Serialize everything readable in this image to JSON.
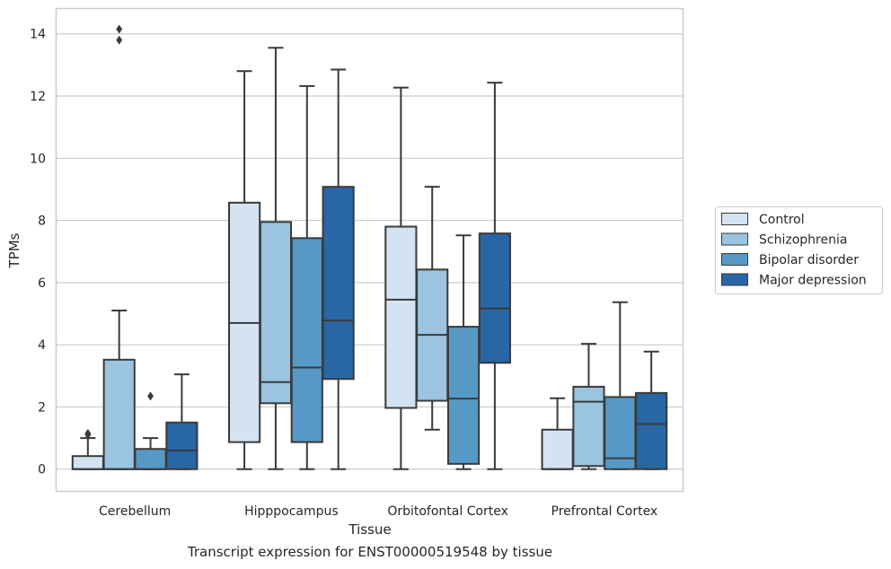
{
  "chart_data": {
    "type": "box",
    "title": "",
    "xlabel": "Tissue",
    "ylabel": "TPMs",
    "ylim": [
      -0.7,
      14.8
    ],
    "yticks": [
      0,
      2,
      4,
      6,
      8,
      10,
      12,
      14
    ],
    "grid": "horizontal",
    "legend_position": "right",
    "categories": [
      "Cerebellum",
      "Hipppocampus",
      "Orbitofontal Cortex",
      "Prefrontal Cortex"
    ],
    "series": [
      {
        "name": "Control",
        "color": "#d3e3f2",
        "boxes": [
          {
            "min": 0,
            "q1": 0,
            "median": 0,
            "q3": 0.42,
            "max": 1.0,
            "outliers": [
              1.1,
              1.15
            ]
          },
          {
            "min": 0,
            "q1": 0.87,
            "median": 4.7,
            "q3": 8.57,
            "max": 12.8,
            "outliers": []
          },
          {
            "min": 0,
            "q1": 1.97,
            "median": 5.45,
            "q3": 7.8,
            "max": 12.27,
            "outliers": []
          },
          {
            "min": 0,
            "q1": 0,
            "median": 0,
            "q3": 1.27,
            "max": 2.28,
            "outliers": []
          }
        ]
      },
      {
        "name": "Schizophrenia",
        "color": "#9ac4df",
        "boxes": [
          {
            "min": 0,
            "q1": 0,
            "median": 0,
            "q3": 3.52,
            "max": 5.1,
            "outliers": [
              13.8,
              14.15
            ]
          },
          {
            "min": 0,
            "q1": 2.12,
            "median": 2.8,
            "q3": 7.95,
            "max": 13.55,
            "outliers": []
          },
          {
            "min": 1.27,
            "q1": 2.2,
            "median": 4.32,
            "q3": 6.42,
            "max": 9.08,
            "outliers": []
          },
          {
            "min": 0,
            "q1": 0.1,
            "median": 2.17,
            "q3": 2.65,
            "max": 4.03,
            "outliers": []
          }
        ]
      },
      {
        "name": "Bipolar disorder",
        "color": "#5699c6",
        "boxes": [
          {
            "min": 0,
            "q1": 0,
            "median": 0,
            "q3": 0.65,
            "max": 1.0,
            "outliers": [
              2.35
            ]
          },
          {
            "min": 0,
            "q1": 0.87,
            "median": 3.27,
            "q3": 7.43,
            "max": 12.32,
            "outliers": []
          },
          {
            "min": 0,
            "q1": 0.17,
            "median": 2.27,
            "q3": 4.58,
            "max": 7.52,
            "outliers": []
          },
          {
            "min": 0,
            "q1": 0,
            "median": 0.35,
            "q3": 2.32,
            "max": 5.37,
            "outliers": []
          }
        ]
      },
      {
        "name": "Major depression",
        "color": "#2866a5",
        "boxes": [
          {
            "min": 0,
            "q1": 0,
            "median": 0.6,
            "q3": 1.5,
            "max": 3.05,
            "outliers": []
          },
          {
            "min": 0,
            "q1": 2.9,
            "median": 4.78,
            "q3": 9.08,
            "max": 12.85,
            "outliers": []
          },
          {
            "min": 0,
            "q1": 3.42,
            "median": 5.17,
            "q3": 7.58,
            "max": 12.43,
            "outliers": []
          },
          {
            "min": 0,
            "q1": 0,
            "median": 1.45,
            "q3": 2.45,
            "max": 3.78,
            "outliers": []
          }
        ]
      }
    ]
  },
  "caption": "Transcript expression for ENST00000519548 by tissue"
}
